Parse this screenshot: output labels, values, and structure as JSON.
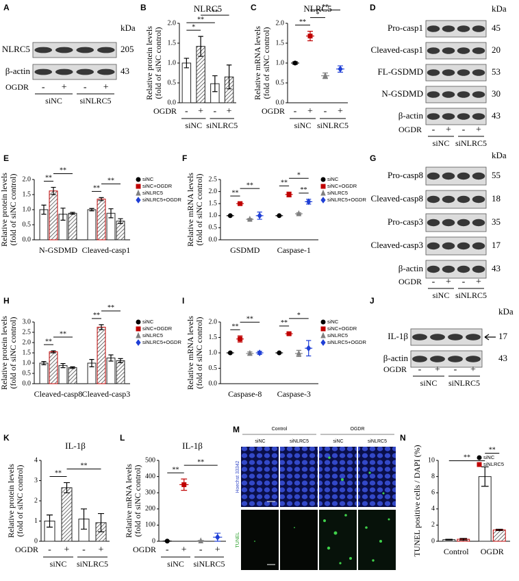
{
  "chart_data": [
    {
      "type": "bar",
      "panel": "B",
      "title": "NLRC5",
      "ylabel": [
        "Relative protein levels",
        "(fold of siNC control)"
      ],
      "ylim": [
        0,
        2
      ],
      "yticks": [
        {
          "value": 0,
          "label": "0.0"
        },
        0.5,
        {
          "value": 1,
          "label": "1.0"
        },
        1.5,
        {
          "value": 2,
          "label": "2.0"
        }
      ],
      "x_label": "OGDR",
      "categories": [
        "-",
        "+",
        "-",
        "+"
      ],
      "groups": [
        "siNC",
        "siNLRC5"
      ],
      "values": [
        1.0,
        1.42,
        0.48,
        0.65
      ],
      "errors": [
        0.12,
        0.25,
        0.2,
        0.3
      ],
      "fills": [
        "white",
        "hatched",
        "white",
        "hatched"
      ],
      "color": "#000000",
      "annotations": [
        {
          "text": "*",
          "between": [
            0,
            1
          ]
        },
        {
          "text": "**",
          "between": [
            0,
            2
          ]
        },
        {
          "text": "**",
          "between": [
            1,
            3
          ]
        }
      ]
    },
    {
      "type": "dot",
      "panel": "C",
      "title": "NLRC5",
      "ylabel": [
        "Relative mRNA levels",
        "(fold of siNC control)"
      ],
      "ylim": [
        0,
        2
      ],
      "yticks": [
        {
          "value": 0,
          "label": "0.0"
        },
        0.5,
        {
          "value": 1,
          "label": "1.0"
        },
        1.5,
        {
          "value": 2,
          "label": "2.0"
        }
      ],
      "x_label": "OGDR",
      "categories": [
        "-",
        "+",
        "-",
        "+"
      ],
      "groups": [
        "siNC",
        "siNLRC5"
      ],
      "values": [
        1.0,
        1.68,
        0.68,
        0.85
      ],
      "errors": [
        0.03,
        0.12,
        0.07,
        0.08
      ],
      "colors": [
        "#000000",
        "#c00000",
        "#808080",
        "#1f3fd6"
      ],
      "annotations": [
        {
          "text": "**",
          "between": [
            0,
            1
          ]
        },
        {
          "text": "*",
          "between": [
            1,
            2
          ]
        },
        {
          "text": "**",
          "between": [
            1,
            3
          ]
        }
      ]
    },
    {
      "type": "grouped_bar",
      "panel": "E",
      "ylabel": [
        "Relative protein levels",
        "(fold of siNC control)"
      ],
      "ylim": [
        0,
        2
      ],
      "yticks": [
        {
          "value": 0,
          "label": "0.0"
        },
        0.5,
        {
          "value": 1,
          "label": "1.0"
        },
        1.5,
        {
          "value": 2,
          "label": "2.0"
        }
      ],
      "categories": [
        "N-GSDMD",
        "Cleaved-casp1"
      ],
      "legend": true,
      "series": [
        {
          "name": "siNC",
          "color": "#000000",
          "fill": "white",
          "values": [
            1.0,
            1.0
          ],
          "errors": [
            0.15,
            0.04
          ]
        },
        {
          "name": "siNC+OGDR",
          "color": "#c00000",
          "fill": "hatched",
          "values": [
            1.62,
            1.35
          ],
          "errors": [
            0.12,
            0.05
          ]
        },
        {
          "name": "siNLRC5",
          "color": "#808080",
          "fill": "white",
          "values": [
            0.85,
            0.88
          ],
          "errors": [
            0.2,
            0.15
          ]
        },
        {
          "name": "siNLRC5+OGDR",
          "color": "#1f3fd6",
          "fill": "hatched",
          "values": [
            0.88,
            0.62
          ],
          "errors": [
            0.03,
            0.08
          ]
        }
      ],
      "annotations": [
        {
          "text": "**",
          "between": [
            0,
            1
          ]
        },
        {
          "text": "**",
          "between": [
            1,
            3
          ]
        },
        {
          "text": "**",
          "between": [
            4,
            5
          ]
        },
        {
          "text": "**",
          "between": [
            5,
            7
          ]
        }
      ]
    },
    {
      "type": "grouped_dot",
      "panel": "F",
      "ylabel": [
        "Relative mRNA levels",
        "(fold of siNC control)"
      ],
      "ylim": [
        0,
        2.5
      ],
      "yticks": [
        {
          "value": 0,
          "label": "0.0"
        },
        0.5,
        {
          "value": 1,
          "label": "1.0"
        },
        1.5,
        {
          "value": 2,
          "label": "2.0"
        },
        2.5
      ],
      "categories": [
        "GSDMD",
        "Caspase-1"
      ],
      "legend": true,
      "series": [
        {
          "name": "siNC",
          "color": "#000000",
          "values": [
            1.0,
            1.0
          ],
          "errors": [
            0,
            0
          ]
        },
        {
          "name": "siNC+OGDR",
          "color": "#c00000",
          "values": [
            1.5,
            1.88
          ],
          "errors": [
            0.06,
            0.1
          ]
        },
        {
          "name": "siNLRC5",
          "color": "#808080",
          "values": [
            0.85,
            1.08
          ],
          "errors": [
            0.03,
            0.04
          ]
        },
        {
          "name": "siNLRC5+OGDR",
          "color": "#1f3fd6",
          "values": [
            1.0,
            1.58
          ],
          "errors": [
            0.15,
            0.1
          ]
        }
      ],
      "annotations": [
        {
          "text": "**",
          "between": [
            0,
            1
          ]
        },
        {
          "text": "**",
          "between": [
            1,
            3
          ]
        },
        {
          "text": "**",
          "between": [
            4,
            5
          ]
        },
        {
          "text": "**",
          "between": [
            6,
            7
          ]
        },
        {
          "text": "*",
          "between": [
            5,
            7
          ]
        }
      ]
    },
    {
      "type": "grouped_bar",
      "panel": "H",
      "ylabel": [
        "Relative protein levels",
        "(fold of siNC control)"
      ],
      "ylim": [
        0,
        3
      ],
      "yticks": [
        {
          "value": 0,
          "label": "0.0"
        },
        0.5,
        {
          "value": 1,
          "label": "1.0"
        },
        1.5,
        {
          "value": 2,
          "label": "2.0"
        },
        2.5,
        {
          "value": 3,
          "label": "3.0"
        }
      ],
      "categories": [
        "Cleaved-casp8",
        "Cleaved-casp3"
      ],
      "legend": true,
      "series": [
        {
          "name": "siNC",
          "color": "#000000",
          "fill": "white",
          "values": [
            1.0,
            1.0
          ],
          "errors": [
            0.08,
            0.18
          ]
        },
        {
          "name": "siNC+OGDR",
          "color": "#c00000",
          "fill": "hatched",
          "values": [
            1.55,
            2.75
          ],
          "errors": [
            0.05,
            0.12
          ]
        },
        {
          "name": "siNLRC5",
          "color": "#808080",
          "fill": "white",
          "values": [
            0.88,
            1.25
          ],
          "errors": [
            0.1,
            0.15
          ]
        },
        {
          "name": "siNLRC5+OGDR",
          "color": "#1f3fd6",
          "fill": "hatched",
          "values": [
            0.78,
            1.12
          ],
          "errors": [
            0.04,
            0.1
          ]
        }
      ],
      "annotations": [
        {
          "text": "**",
          "between": [
            0,
            1
          ]
        },
        {
          "text": "**",
          "between": [
            1,
            3
          ]
        },
        {
          "text": "**",
          "between": [
            4,
            5
          ]
        },
        {
          "text": "**",
          "between": [
            5,
            7
          ]
        }
      ]
    },
    {
      "type": "grouped_dot",
      "panel": "I",
      "ylabel": [
        "Relative mRNA levels",
        "(fold of siNC control)"
      ],
      "ylim": [
        0,
        2
      ],
      "yticks": [
        {
          "value": 0,
          "label": "0.0"
        },
        0.5,
        {
          "value": 1,
          "label": "1.0"
        },
        1.5,
        {
          "value": 2,
          "label": "2.0"
        }
      ],
      "categories": [
        "Caspase-8",
        "Caspase-3"
      ],
      "legend": true,
      "series": [
        {
          "name": "siNC",
          "color": "#000000",
          "values": [
            1.0,
            1.0
          ],
          "errors": [
            0,
            0
          ]
        },
        {
          "name": "siNC+OGDR",
          "color": "#c00000",
          "values": [
            1.45,
            1.62
          ],
          "errors": [
            0.1,
            0.05
          ]
        },
        {
          "name": "siNLRC5",
          "color": "#808080",
          "values": [
            0.98,
            0.98
          ],
          "errors": [
            0.05,
            0.1
          ]
        },
        {
          "name": "siNLRC5+OGDR",
          "color": "#1f3fd6",
          "values": [
            1.0,
            1.15
          ],
          "errors": [
            0.05,
            0.25
          ]
        }
      ],
      "annotations": [
        {
          "text": "**",
          "between": [
            0,
            1
          ]
        },
        {
          "text": "**",
          "between": [
            1,
            3
          ]
        },
        {
          "text": "**",
          "between": [
            4,
            5
          ]
        },
        {
          "text": "*",
          "between": [
            5,
            7
          ]
        }
      ]
    },
    {
      "type": "bar",
      "panel": "K",
      "title": "IL-1β",
      "ylabel": [
        "Relative protein levels",
        "(fold of siNC control)"
      ],
      "ylim": [
        0,
        4
      ],
      "yticks": [
        0,
        1,
        2,
        3,
        4
      ],
      "x_label": "OGDR",
      "categories": [
        "-",
        "+",
        "-",
        "+"
      ],
      "groups": [
        "siNC",
        "siNLRC5"
      ],
      "values": [
        1.0,
        2.65,
        1.1,
        0.92
      ],
      "errors": [
        0.3,
        0.25,
        0.5,
        0.45
      ],
      "fills": [
        "white",
        "hatched",
        "white",
        "hatched"
      ],
      "color": "#000000",
      "annotations": [
        {
          "text": "**",
          "between": [
            0,
            1
          ]
        },
        {
          "text": "**",
          "between": [
            1,
            3
          ]
        }
      ]
    },
    {
      "type": "dot",
      "panel": "L",
      "title": "IL-1β",
      "ylabel": [
        "Relative mRNA levels",
        "(fold of siNC control)"
      ],
      "ylim": [
        0,
        500
      ],
      "yticks": [
        0,
        100,
        200,
        300,
        400,
        500
      ],
      "x_label": "OGDR",
      "categories": [
        "-",
        "+",
        "-",
        "+"
      ],
      "groups": [
        "siNC",
        "siNLRC5"
      ],
      "values": [
        1,
        350,
        2,
        25
      ],
      "errors": [
        1,
        35,
        3,
        25
      ],
      "colors": [
        "#000000",
        "#c00000",
        "#808080",
        "#1f3fd6"
      ],
      "annotations": [
        {
          "text": "**",
          "between": [
            0,
            1
          ]
        },
        {
          "text": "**",
          "between": [
            1,
            3
          ]
        }
      ]
    },
    {
      "type": "grouped_bar",
      "panel": "N",
      "ylabel": [
        "TUNEL positive cells / DAPI (%)"
      ],
      "ylim": [
        0,
        10
      ],
      "yticks": [
        0,
        2,
        4,
        6,
        8,
        10
      ],
      "categories": [
        "Control",
        "OGDR"
      ],
      "legend": true,
      "series": [
        {
          "name": "siNC",
          "color": "#000000",
          "fill": "white",
          "values": [
            0.2,
            8.0
          ],
          "errors": [
            0.05,
            1.2
          ]
        },
        {
          "name": "siNLRC5",
          "color": "#c00000",
          "fill": "hatched",
          "values": [
            0.25,
            1.4
          ],
          "errors": [
            0.1,
            0.08
          ]
        }
      ],
      "annotations": [
        {
          "text": "**",
          "between": [
            0,
            2
          ]
        },
        {
          "text": "**",
          "between": [
            2,
            3
          ]
        }
      ]
    }
  ],
  "blots": [
    {
      "panel": "A",
      "kda_header": "kDa",
      "rows": [
        {
          "label": "NLRC5",
          "kda": 205
        },
        {
          "label": "β-actin",
          "kda": 43
        }
      ],
      "x_label": "OGDR",
      "lanes": [
        "-",
        "+",
        "-",
        "+"
      ],
      "groups": [
        "siNC",
        "siNLRC5"
      ]
    },
    {
      "panel": "D",
      "kda_header": "kDa",
      "rows": [
        {
          "label": "Pro-casp1",
          "kda": 45
        },
        {
          "label": "Cleaved-casp1",
          "kda": 20
        },
        {
          "label": "FL-GSDMD",
          "kda": 53
        },
        {
          "label": "N-GSDMD",
          "kda": 30
        },
        {
          "label": "β-actin",
          "kda": 43
        }
      ],
      "x_label": "OGDR",
      "lanes": [
        "-",
        "+",
        "-",
        "+"
      ],
      "groups": [
        "siNC",
        "siNLRC5"
      ]
    },
    {
      "panel": "G",
      "kda_header": "kDa",
      "rows": [
        {
          "label": "Pro-casp8",
          "kda": 55
        },
        {
          "label": "Cleaved-casp8",
          "kda": 18
        },
        {
          "label": "Pro-casp3",
          "kda": 35
        },
        {
          "label": "Cleaved-casp3",
          "kda": 17
        },
        {
          "label": "β-actin",
          "kda": 43
        }
      ],
      "x_label": "OGDR",
      "lanes": [
        "-",
        "+",
        "-",
        "+"
      ],
      "groups": [
        "siNC",
        "siNLRC5"
      ]
    },
    {
      "panel": "J",
      "kda_header": "kDa",
      "rows": [
        {
          "label": "IL-1β",
          "kda": 17
        },
        {
          "label": "β-actin",
          "kda": 43
        }
      ],
      "x_label": "OGDR",
      "lanes": [
        "-",
        "+",
        "-",
        "+"
      ],
      "groups": [
        "siNC",
        "siNLRC5"
      ]
    }
  ],
  "micrograph": {
    "panel": "M",
    "conditions": [
      "Control",
      "OGDR"
    ],
    "groups": [
      "siNC",
      "siNLRC5",
      "siNC",
      "siNLRC5"
    ],
    "stains": [
      "Hoechst 33342",
      "TUNEL"
    ]
  }
}
